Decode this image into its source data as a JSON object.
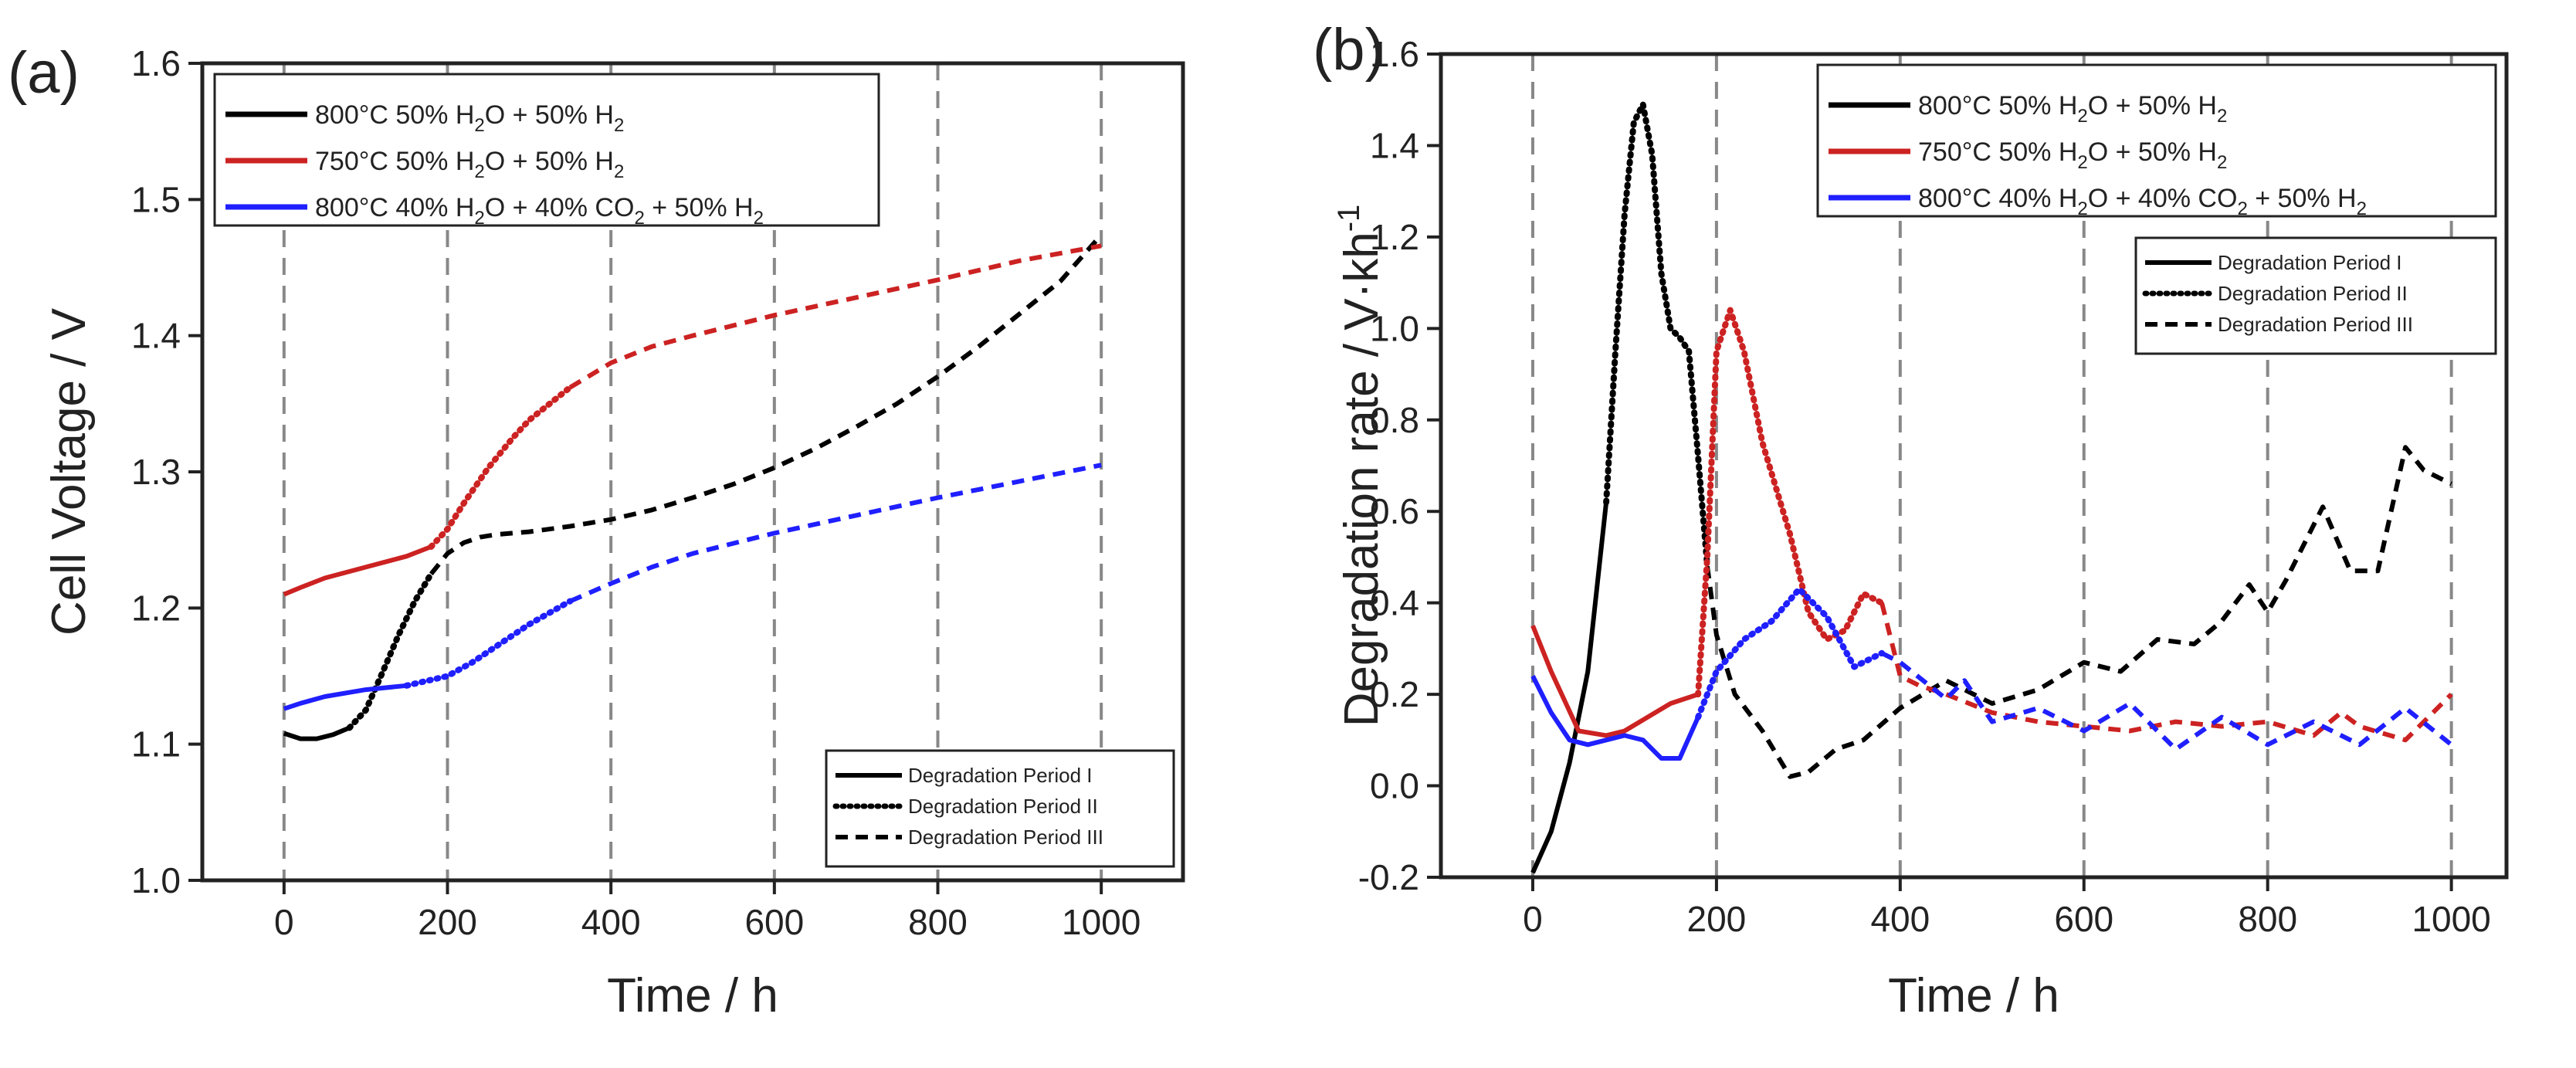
{
  "figure": {
    "panels": [
      "(a)",
      "(b)"
    ]
  },
  "chart_data": [
    {
      "type": "line",
      "panel_label": "(a)",
      "title": "",
      "xlabel": "Time / h",
      "ylabel": "Cell Voltage / V",
      "xlim": [
        -100,
        1100
      ],
      "ylim": [
        1.0,
        1.6
      ],
      "xticks": [
        "0",
        "200",
        "400",
        "600",
        "800",
        "1000"
      ],
      "yticks": [
        "1.0",
        "1.1",
        "1.2",
        "1.3",
        "1.4",
        "1.5",
        "1.6"
      ],
      "vlines": [
        0,
        200,
        400,
        600,
        800,
        1000
      ],
      "legend_main": [
        {
          "prefix": "800°C 50% H",
          "sub1": "2",
          "mid": "O + 50% H",
          "sub2": "2",
          "color": "#000000"
        },
        {
          "prefix": "750°C 50% H",
          "sub1": "2",
          "mid": "O + 50% H",
          "sub2": "2",
          "color": "#cc2222"
        },
        {
          "prefix": "800°C 40% H",
          "sub1": "2",
          "mid": "O + 40% CO",
          "sub2": "2",
          "suffix": " + 50% H",
          "sub3": "2",
          "color": "#1f1fff"
        }
      ],
      "legend_periods": [
        "Degradation Period I",
        "Degradation Period II",
        "Degradation Period III"
      ],
      "series": [
        {
          "name": "800°C 50% H2O + 50% H2",
          "color": "#000000",
          "x": [
            0,
            20,
            40,
            60,
            80,
            100,
            120,
            140,
            160,
            180,
            200,
            220,
            240,
            260,
            280,
            300,
            350,
            400,
            450,
            500,
            550,
            600,
            650,
            700,
            750,
            800,
            850,
            900,
            950,
            1000
          ],
          "y": [
            1.108,
            1.104,
            1.104,
            1.107,
            1.112,
            1.125,
            1.152,
            1.18,
            1.205,
            1.225,
            1.24,
            1.248,
            1.252,
            1.254,
            1.255,
            1.256,
            1.26,
            1.265,
            1.272,
            1.281,
            1.291,
            1.303,
            1.317,
            1.333,
            1.35,
            1.37,
            1.392,
            1.416,
            1.44,
            1.474
          ],
          "period_breaks": [
            90,
            200
          ]
        },
        {
          "name": "750°C 50% H2O + 50% H2",
          "color": "#cc2222",
          "x": [
            0,
            20,
            50,
            100,
            150,
            180,
            200,
            220,
            250,
            280,
            300,
            350,
            400,
            450,
            500,
            600,
            700,
            800,
            900,
            1000
          ],
          "y": [
            1.21,
            1.215,
            1.222,
            1.23,
            1.238,
            1.245,
            1.258,
            1.277,
            1.303,
            1.325,
            1.338,
            1.362,
            1.38,
            1.392,
            1.4,
            1.415,
            1.428,
            1.441,
            1.455,
            1.466
          ],
          "period_breaks": [
            190,
            400
          ]
        },
        {
          "name": "800°C 40% H2O + 40% CO2 + 50% H2",
          "color": "#1f1fff",
          "x": [
            0,
            20,
            50,
            100,
            150,
            200,
            230,
            260,
            300,
            350,
            400,
            450,
            500,
            600,
            700,
            800,
            900,
            1000
          ],
          "y": [
            1.126,
            1.13,
            1.135,
            1.14,
            1.143,
            1.15,
            1.16,
            1.172,
            1.188,
            1.205,
            1.218,
            1.23,
            1.24,
            1.255,
            1.268,
            1.281,
            1.293,
            1.305
          ],
          "period_breaks": [
            200,
            400
          ]
        }
      ]
    },
    {
      "type": "line",
      "panel_label": "(b)",
      "title": "",
      "xlabel": "Time / h",
      "ylabel": "Degradation rate / V·kh",
      "ylabel_sup": "-1",
      "xlim": [
        -100,
        1060
      ],
      "ylim": [
        -0.2,
        1.6
      ],
      "xticks": [
        "0",
        "200",
        "400",
        "600",
        "800",
        "1000"
      ],
      "yticks": [
        "-0.2",
        "0.0",
        "0.2",
        "0.4",
        "0.6",
        "0.8",
        "1.0",
        "1.2",
        "1.4",
        "1.6"
      ],
      "vlines": [
        0,
        200,
        400,
        600,
        800,
        1000
      ],
      "legend_main": [
        {
          "prefix": "800°C 50% H",
          "sub1": "2",
          "mid": "O + 50% H",
          "sub2": "2",
          "color": "#000000"
        },
        {
          "prefix": "750°C 50% H",
          "sub1": "2",
          "mid": "O + 50% H",
          "sub2": "2",
          "color": "#cc2222"
        },
        {
          "prefix": "800°C 40% H",
          "sub1": "2",
          "mid": "O + 40% CO",
          "sub2": "2",
          "suffix": " + 50% H",
          "sub3": "2",
          "color": "#1f1fff"
        }
      ],
      "legend_periods": [
        "Degradation Period I",
        "Degradation Period II",
        "Degradation Period III"
      ],
      "series": [
        {
          "name": "800°C 50% H2O + 50% H2",
          "color": "#000000",
          "x": [
            0,
            20,
            40,
            60,
            80,
            90,
            100,
            110,
            120,
            130,
            140,
            150,
            160,
            170,
            180,
            190,
            200,
            220,
            250,
            280,
            300,
            330,
            360,
            400,
            450,
            480,
            500,
            550,
            600,
            640,
            680,
            720,
            750,
            780,
            800,
            820,
            860,
            890,
            920,
            950,
            970,
            1000
          ],
          "y": [
            -0.19,
            -0.1,
            0.05,
            0.25,
            0.62,
            0.95,
            1.25,
            1.45,
            1.49,
            1.38,
            1.12,
            1.0,
            0.98,
            0.95,
            0.72,
            0.48,
            0.33,
            0.2,
            0.12,
            0.02,
            0.03,
            0.08,
            0.1,
            0.17,
            0.23,
            0.2,
            0.18,
            0.21,
            0.27,
            0.25,
            0.32,
            0.31,
            0.36,
            0.44,
            0.38,
            0.45,
            0.61,
            0.47,
            0.47,
            0.74,
            0.69,
            0.66
          ],
          "period_breaks": [
            90,
            200
          ]
        },
        {
          "name": "750°C 50% H2O + 50% H2",
          "color": "#cc2222",
          "x": [
            0,
            20,
            50,
            80,
            100,
            150,
            180,
            190,
            200,
            215,
            230,
            250,
            280,
            300,
            320,
            340,
            360,
            380,
            400,
            420,
            450,
            500,
            550,
            600,
            650,
            700,
            750,
            800,
            850,
            880,
            900,
            950,
            1000
          ],
          "y": [
            0.35,
            0.25,
            0.12,
            0.11,
            0.12,
            0.18,
            0.2,
            0.5,
            0.95,
            1.04,
            0.95,
            0.75,
            0.55,
            0.38,
            0.32,
            0.34,
            0.42,
            0.4,
            0.24,
            0.22,
            0.2,
            0.16,
            0.14,
            0.13,
            0.12,
            0.14,
            0.13,
            0.14,
            0.11,
            0.16,
            0.13,
            0.1,
            0.2
          ],
          "period_breaks": [
            190,
            400
          ]
        },
        {
          "name": "800°C 40% H2O + 40% CO2 + 50% H2",
          "color": "#1f1fff",
          "x": [
            0,
            20,
            40,
            60,
            80,
            100,
            120,
            140,
            160,
            180,
            200,
            230,
            260,
            290,
            320,
            350,
            380,
            400,
            450,
            470,
            500,
            550,
            600,
            650,
            700,
            750,
            800,
            850,
            900,
            950,
            1000
          ],
          "y": [
            0.24,
            0.16,
            0.1,
            0.09,
            0.1,
            0.11,
            0.1,
            0.06,
            0.06,
            0.15,
            0.25,
            0.32,
            0.36,
            0.43,
            0.37,
            0.26,
            0.29,
            0.27,
            0.19,
            0.23,
            0.14,
            0.17,
            0.12,
            0.18,
            0.08,
            0.15,
            0.09,
            0.14,
            0.09,
            0.17,
            0.09
          ],
          "period_breaks": [
            200,
            400
          ]
        }
      ]
    }
  ]
}
